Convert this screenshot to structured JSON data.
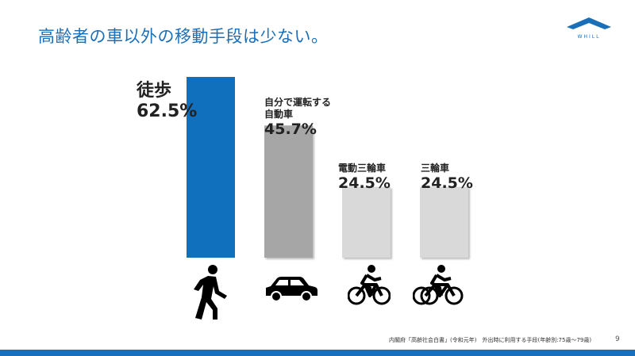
{
  "header": {
    "title": "高齢者の車以外の移動手段は少ない。",
    "logo_text": "WHILL"
  },
  "chart_data": {
    "type": "bar",
    "categories": [
      "徒歩",
      "自分で運転する自動車",
      "電動三輪車",
      "三輪車"
    ],
    "category_lines": [
      [
        "徒歩"
      ],
      [
        "自分で運転する",
        "自動車"
      ],
      [
        "電動三輪車"
      ],
      [
        "三輪車"
      ]
    ],
    "values": [
      62.5,
      45.7,
      24.5,
      24.5
    ],
    "value_labels": [
      "62.5%",
      "45.7%",
      "24.5%",
      "24.5%"
    ],
    "colors": [
      "#1170bd",
      "#a6a6a6",
      "#d9d9d9",
      "#d9d9d9"
    ],
    "icons": [
      "walking-person-icon",
      "car-icon",
      "bicycle-icon",
      "bicycle-icon"
    ],
    "ylim": [
      0,
      62.5
    ],
    "grid": false
  },
  "footer": {
    "source": "内閣府「高齢社会白書」(令和元年)　外出時に利用する手段(年齢別:75歳～79歳)",
    "page": "9"
  },
  "colors": {
    "accent": "#1b6fb9"
  }
}
